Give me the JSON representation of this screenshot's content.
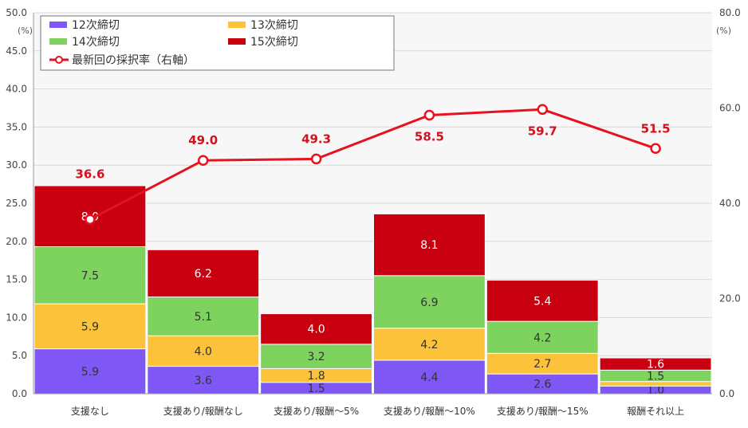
{
  "chart_data": {
    "type": "bar",
    "stacked": true,
    "categories": [
      "支援なし",
      "支援あり/報酬なし",
      "支援あり/報酬～5%",
      "支援あり/報酬～10%",
      "支援あり/報酬～15%",
      "報酬それ以上"
    ],
    "series": [
      {
        "name": "12次締切",
        "color": "#7f57f5",
        "values": [
          5.9,
          3.6,
          1.5,
          4.4,
          2.6,
          1.0
        ],
        "labels": [
          "5.9",
          "3.6",
          "1.5",
          "4.4",
          "2.6",
          "1.0"
        ]
      },
      {
        "name": "13次締切",
        "color": "#fcc23a",
        "values": [
          5.9,
          4.0,
          1.8,
          4.2,
          2.7,
          0.6
        ],
        "labels": [
          "5.9",
          "4.0",
          "1.8",
          "4.2",
          "2.7",
          ""
        ]
      },
      {
        "name": "14次締切",
        "color": "#7ed35f",
        "values": [
          7.5,
          5.1,
          3.2,
          6.9,
          4.2,
          1.5
        ],
        "labels": [
          "7.5",
          "5.1",
          "3.2",
          "6.9",
          "4.2",
          "1.5"
        ]
      },
      {
        "name": "15次締切",
        "color": "#c8000f",
        "values": [
          8.0,
          6.2,
          4.0,
          8.1,
          5.4,
          1.6
        ],
        "labels": [
          "8.0",
          "6.2",
          "4.0",
          "8.1",
          "5.4",
          "1.6"
        ]
      }
    ],
    "line_series": {
      "name": "最新回の採択率（右軸）",
      "color": "#e8111e",
      "axis": "right",
      "values": [
        36.6,
        49.0,
        49.3,
        58.5,
        59.7,
        51.5
      ],
      "labels": [
        "36.6",
        "49.0",
        "49.3",
        "58.5",
        "59.7",
        "51.5"
      ]
    },
    "y_left": {
      "range": [
        0,
        50
      ],
      "ticks": [
        "0.0",
        "5.0",
        "10.0",
        "15.0",
        "20.0",
        "25.0",
        "30.0",
        "35.0",
        "40.0",
        "45.0",
        "50.0"
      ],
      "unit": "(%)"
    },
    "y_right": {
      "range": [
        0,
        80
      ],
      "ticks": [
        "0.0",
        "20.0",
        "40.0",
        "60.0",
        "80.0"
      ],
      "unit": "(%)"
    },
    "grid": true,
    "legend_placement": "top-left"
  }
}
